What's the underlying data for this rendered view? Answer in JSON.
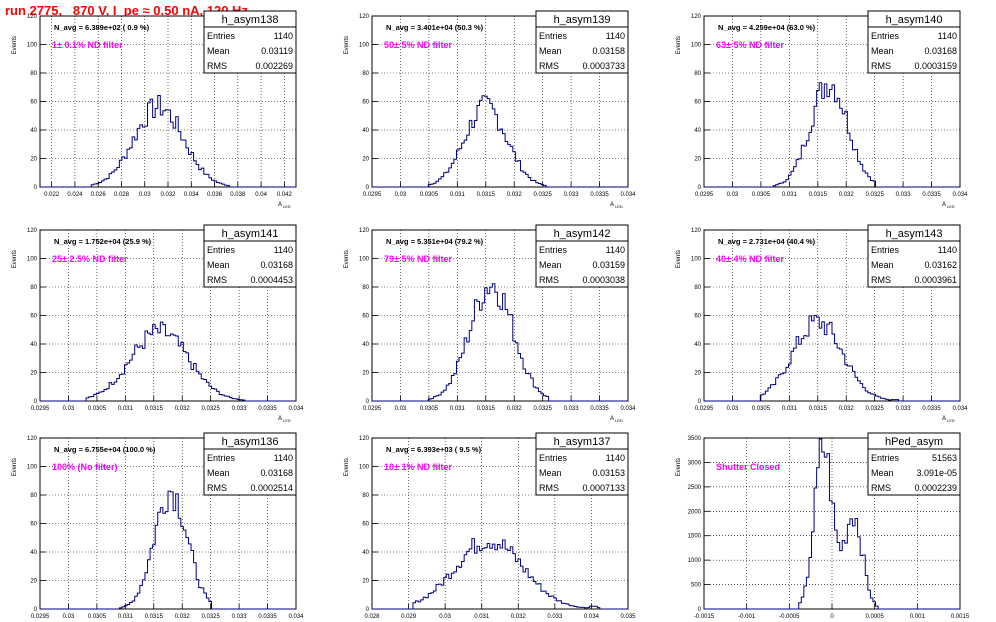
{
  "run_title": "run 2775,   870 V, I_pe ≈ 0.50 nA, 120 Hz",
  "y_axis_label": "Events",
  "x_axis_label": "A",
  "x_axis_subscript": "LED",
  "stats_labels": {
    "entries": "Entries",
    "mean": "Mean",
    "rms": "RMS"
  },
  "colors": {
    "histogram": "#000080",
    "annotation": "#ff00ff",
    "title": "#ff0000",
    "grid": "#000000"
  },
  "chart_data": [
    {
      "type": "histogram",
      "name": "h_asym138",
      "navg": "N_avg = 6.389e+02 ( 0.9 %)",
      "filter_label": "1± 0.1% ND filter",
      "stats": {
        "entries": "1140",
        "mean": "0.03119",
        "rms": "0.002269"
      },
      "xlim": [
        0.021,
        0.043
      ],
      "ylim": [
        0,
        120
      ],
      "x_ticks": [
        "0.022",
        "0.024",
        "0.026",
        "0.028",
        "0.03",
        "0.032",
        "0.034",
        "0.036",
        "0.038",
        "0.04",
        "0.042"
      ],
      "y_ticks": [
        "0",
        "20",
        "40",
        "60",
        "80",
        "100",
        "120"
      ],
      "grid": true,
      "peaks": [
        {
          "x": 0.0312,
          "y": 58
        }
      ],
      "x_extent": [
        0.0255,
        0.0372
      ]
    },
    {
      "type": "histogram",
      "name": "h_asym139",
      "navg": "N_avg = 3.401e+04 (50.3 %)",
      "filter_label": "50± 5% ND filter",
      "stats": {
        "entries": "1140",
        "mean": "0.03158",
        "rms": "0.0003733"
      },
      "xlim": [
        0.0295,
        0.034
      ],
      "ylim": [
        0,
        120
      ],
      "x_ticks": [
        "0.0295",
        "0.03",
        "0.0305",
        "0.031",
        "0.0315",
        "0.032",
        "0.0325",
        "0.033",
        "0.0335",
        "0.034"
      ],
      "y_ticks": [
        "0",
        "20",
        "40",
        "60",
        "80",
        "100",
        "120"
      ],
      "grid": true,
      "peaks": [
        {
          "x": 0.0315,
          "y": 58
        }
      ],
      "x_extent": [
        0.0305,
        0.03255
      ]
    },
    {
      "type": "histogram",
      "name": "h_asym140",
      "navg": "N_avg = 4.259e+04 (63.0 %)",
      "filter_label": "63± 5% ND filter",
      "stats": {
        "entries": "1140",
        "mean": "0.03168",
        "rms": "0.0003159"
      },
      "xlim": [
        0.0295,
        0.034
      ],
      "ylim": [
        0,
        120
      ],
      "x_ticks": [
        "0.0295",
        "0.03",
        "0.0305",
        "0.031",
        "0.0315",
        "0.032",
        "0.0325",
        "0.033",
        "0.0335",
        "0.034"
      ],
      "y_ticks": [
        "0",
        "20",
        "40",
        "60",
        "80",
        "100",
        "120"
      ],
      "grid": true,
      "peaks": [
        {
          "x": 0.0317,
          "y": 76
        }
      ],
      "x_extent": [
        0.0307,
        0.0325
      ]
    },
    {
      "type": "histogram",
      "name": "h_asym141",
      "navg": "N_avg = 1.752e+04 (25.9 %)",
      "filter_label": "25± 2.5% ND filter",
      "stats": {
        "entries": "1140",
        "mean": "0.03168",
        "rms": "0.0004453"
      },
      "xlim": [
        0.0295,
        0.034
      ],
      "ylim": [
        0,
        120
      ],
      "x_ticks": [
        "0.0295",
        "0.03",
        "0.0305",
        "0.031",
        "0.0315",
        "0.032",
        "0.0325",
        "0.033",
        "0.0335",
        "0.034"
      ],
      "y_ticks": [
        "0",
        "20",
        "40",
        "60",
        "80",
        "100",
        "120"
      ],
      "grid": true,
      "peaks": [
        {
          "x": 0.0316,
          "y": 50
        }
      ],
      "x_extent": [
        0.0303,
        0.0331
      ]
    },
    {
      "type": "histogram",
      "name": "h_asym142",
      "navg": "N_avg = 5.351e+04 (79.2 %)",
      "filter_label": "79± 5% ND filter",
      "stats": {
        "entries": "1140",
        "mean": "0.03159",
        "rms": "0.0003038"
      },
      "xlim": [
        0.0295,
        0.034
      ],
      "ylim": [
        0,
        120
      ],
      "x_ticks": [
        "0.0295",
        "0.03",
        "0.0305",
        "0.031",
        "0.0315",
        "0.032",
        "0.0325",
        "0.033",
        "0.0335",
        "0.034"
      ],
      "y_ticks": [
        "0",
        "20",
        "40",
        "60",
        "80",
        "100",
        "120"
      ],
      "grid": true,
      "peaks": [
        {
          "x": 0.0316,
          "y": 85
        }
      ],
      "x_extent": [
        0.0305,
        0.0326
      ]
    },
    {
      "type": "histogram",
      "name": "h_asym143",
      "navg": "N_avg = 2.731e+04 (40.4 %)",
      "filter_label": "40± 4% ND filter",
      "stats": {
        "entries": "1140",
        "mean": "0.03162",
        "rms": "0.0003961"
      },
      "xlim": [
        0.0295,
        0.034
      ],
      "ylim": [
        0,
        120
      ],
      "x_ticks": [
        "0.0295",
        "0.03",
        "0.0305",
        "0.031",
        "0.0315",
        "0.032",
        "0.0325",
        "0.033",
        "0.0335",
        "0.034"
      ],
      "y_ticks": [
        "0",
        "20",
        "40",
        "60",
        "80",
        "100",
        "120"
      ],
      "grid": true,
      "peaks": [
        {
          "x": 0.0315,
          "y": 57
        }
      ],
      "x_extent": [
        0.0305,
        0.0329
      ]
    },
    {
      "type": "histogram",
      "name": "h_asym136",
      "navg": "N_avg = 6.755e+04 (100.0 %)",
      "filter_label": "100% (No filter)",
      "stats": {
        "entries": "1140",
        "mean": "0.03168",
        "rms": "0.0002514"
      },
      "xlim": [
        0.0295,
        0.034
      ],
      "ylim": [
        0,
        120
      ],
      "x_ticks": [
        "0.0295",
        "0.03",
        "0.0305",
        "0.031",
        "0.0315",
        "0.032",
        "0.0325",
        "0.033",
        "0.0335",
        "0.034"
      ],
      "y_ticks": [
        "0",
        "20",
        "40",
        "60",
        "80",
        "100",
        "120"
      ],
      "grid": true,
      "peaks": [
        {
          "x": 0.0318,
          "y": 86
        }
      ],
      "x_extent": [
        0.0309,
        0.0325
      ]
    },
    {
      "type": "histogram",
      "name": "h_asym137",
      "navg": "N_avg = 6.393e+03 ( 9.5 %)",
      "filter_label": "10± 1% ND filter",
      "stats": {
        "entries": "1140",
        "mean": "0.03153",
        "rms": "0.0007133"
      },
      "xlim": [
        0.028,
        0.035
      ],
      "ylim": [
        0,
        120
      ],
      "x_ticks": [
        "0.028",
        "0.029",
        "0.03",
        "0.031",
        "0.032",
        "0.033",
        "0.034",
        "0.035"
      ],
      "y_ticks": [
        "0",
        "20",
        "40",
        "60",
        "80",
        "100",
        "120"
      ],
      "grid": true,
      "peaks": [
        {
          "x": 0.0312,
          "y": 50
        }
      ],
      "x_extent": [
        0.0291,
        0.0342
      ]
    },
    {
      "type": "histogram",
      "name": "hPed_asym",
      "navg": "",
      "filter_label": "Shutter Closed",
      "stats": {
        "entries": "51563",
        "mean": "3.091e-05",
        "rms": "0.0002239"
      },
      "xlim": [
        -0.0015,
        0.0015
      ],
      "ylim": [
        0,
        3500
      ],
      "x_ticks": [
        "-0.0015",
        "-0.001",
        "-0.0005",
        "0",
        "0.0005",
        "0.001",
        "0.0015"
      ],
      "y_ticks": [
        "0",
        "500",
        "1000",
        "1500",
        "2000",
        "2500",
        "3000",
        "3500"
      ],
      "grid": true,
      "peaks": [
        {
          "x": -0.0001,
          "y": 3400
        },
        {
          "x": 0.00025,
          "y": 2000
        }
      ],
      "x_extent": [
        -0.0004,
        0.00055
      ]
    }
  ]
}
